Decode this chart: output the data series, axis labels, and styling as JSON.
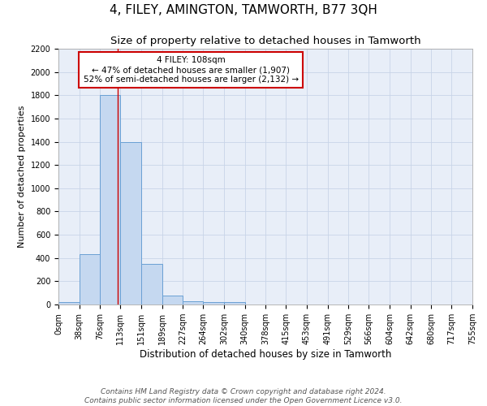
{
  "title": "4, FILEY, AMINGTON, TAMWORTH, B77 3QH",
  "subtitle": "Size of property relative to detached houses in Tamworth",
  "xlabel": "Distribution of detached houses by size in Tamworth",
  "ylabel": "Number of detached properties",
  "bin_edges": [
    0,
    38,
    76,
    113,
    151,
    189,
    227,
    264,
    302,
    340,
    378,
    415,
    453,
    491,
    529,
    566,
    604,
    642,
    680,
    717,
    755
  ],
  "bar_heights": [
    20,
    430,
    1800,
    1400,
    350,
    80,
    25,
    20,
    20,
    0,
    0,
    0,
    0,
    0,
    0,
    0,
    0,
    0,
    0,
    0
  ],
  "bar_color": "#c5d8f0",
  "bar_edge_color": "#6aa0d4",
  "bar_edge_width": 0.7,
  "red_line_x": 108,
  "ylim": [
    0,
    2200
  ],
  "yticks": [
    0,
    200,
    400,
    600,
    800,
    1000,
    1200,
    1400,
    1600,
    1800,
    2000,
    2200
  ],
  "xtick_labels": [
    "0sqm",
    "38sqm",
    "76sqm",
    "113sqm",
    "151sqm",
    "189sqm",
    "227sqm",
    "264sqm",
    "302sqm",
    "340sqm",
    "378sqm",
    "415sqm",
    "453sqm",
    "491sqm",
    "529sqm",
    "566sqm",
    "604sqm",
    "642sqm",
    "680sqm",
    "717sqm",
    "755sqm"
  ],
  "annotation_line1": "4 FILEY: 108sqm",
  "annotation_line2": "← 47% of detached houses are smaller (1,907)",
  "annotation_line3": "52% of semi-detached houses are larger (2,132) →",
  "annotation_box_color": "#ffffff",
  "annotation_box_edge_color": "#cc0000",
  "footer_line1": "Contains HM Land Registry data © Crown copyright and database right 2024.",
  "footer_line2": "Contains public sector information licensed under the Open Government Licence v3.0.",
  "bg_color": "#ffffff",
  "plot_bg_color": "#e8eef8",
  "grid_color": "#c8d4e8",
  "title_fontsize": 11,
  "subtitle_fontsize": 9.5,
  "xlabel_fontsize": 8.5,
  "ylabel_fontsize": 8,
  "tick_fontsize": 7,
  "annotation_fontsize": 7.5,
  "footer_fontsize": 6.5
}
